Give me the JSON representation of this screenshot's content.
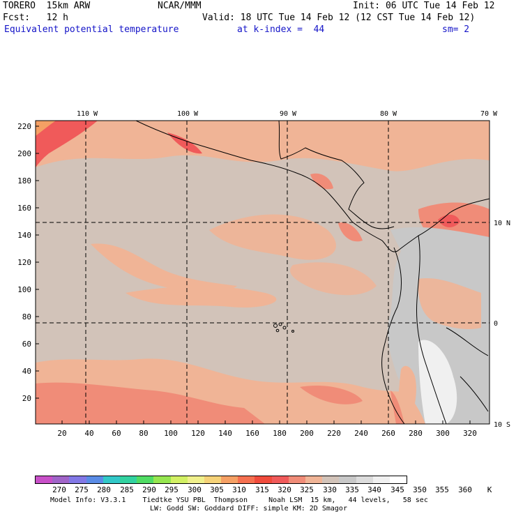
{
  "header": {
    "model": "TORERO  15km ARW",
    "org": "NCAR/MMM",
    "init": "Init: 06 UTC Tue 14 Feb 12",
    "fcst": "Fcst:   12 h",
    "valid": "Valid: 18 UTC Tue 14 Feb 12 (12 CST Tue 14 Feb 12)",
    "field": "Equivalent potential temperature",
    "level": "at k-index =  44",
    "smooth": "sm= 2"
  },
  "map": {
    "lon_labels": [
      "110 W",
      "100 W",
      "90 W",
      "80 W",
      "70 W"
    ],
    "lat_labels": [
      "10 N",
      "0",
      "10 S"
    ],
    "y_ticks": [
      "220",
      "200",
      "180",
      "160",
      "140",
      "120",
      "100",
      "80",
      "60",
      "40",
      "20"
    ],
    "x_ticks": [
      "20",
      "40",
      "60",
      "80",
      "100",
      "120",
      "140",
      "160",
      "180",
      "200",
      "220",
      "240",
      "260",
      "280",
      "300",
      "320"
    ]
  },
  "colorbar": {
    "colors": [
      "#c850c8",
      "#a064c8",
      "#8278e6",
      "#5a8ce6",
      "#32c8c8",
      "#32d2a0",
      "#50dc64",
      "#96e650",
      "#d2f064",
      "#f0f08c",
      "#f5d278",
      "#f5a064",
      "#f57050",
      "#f04b3c",
      "#f05a5a",
      "#f08c78",
      "#f0b496",
      "#d2c3b9",
      "#c8c8c8",
      "#dcdcdc",
      "#f0f0f0",
      "#ffffff"
    ],
    "labels": [
      "270",
      "275",
      "280",
      "285",
      "290",
      "295",
      "300",
      "305",
      "310",
      "315",
      "320",
      "325",
      "330",
      "335",
      "340",
      "345",
      "350",
      "355",
      "360",
      "K"
    ]
  },
  "footer": {
    "line1": "Model Info: V3.3.1    Tiedtke YSU PBL  Thompson     Noah LSM  15 km,   44 levels,   58 sec",
    "line2": "LW: Godd SW: Goddard DIFF: simple KM: 2D Smagor"
  }
}
